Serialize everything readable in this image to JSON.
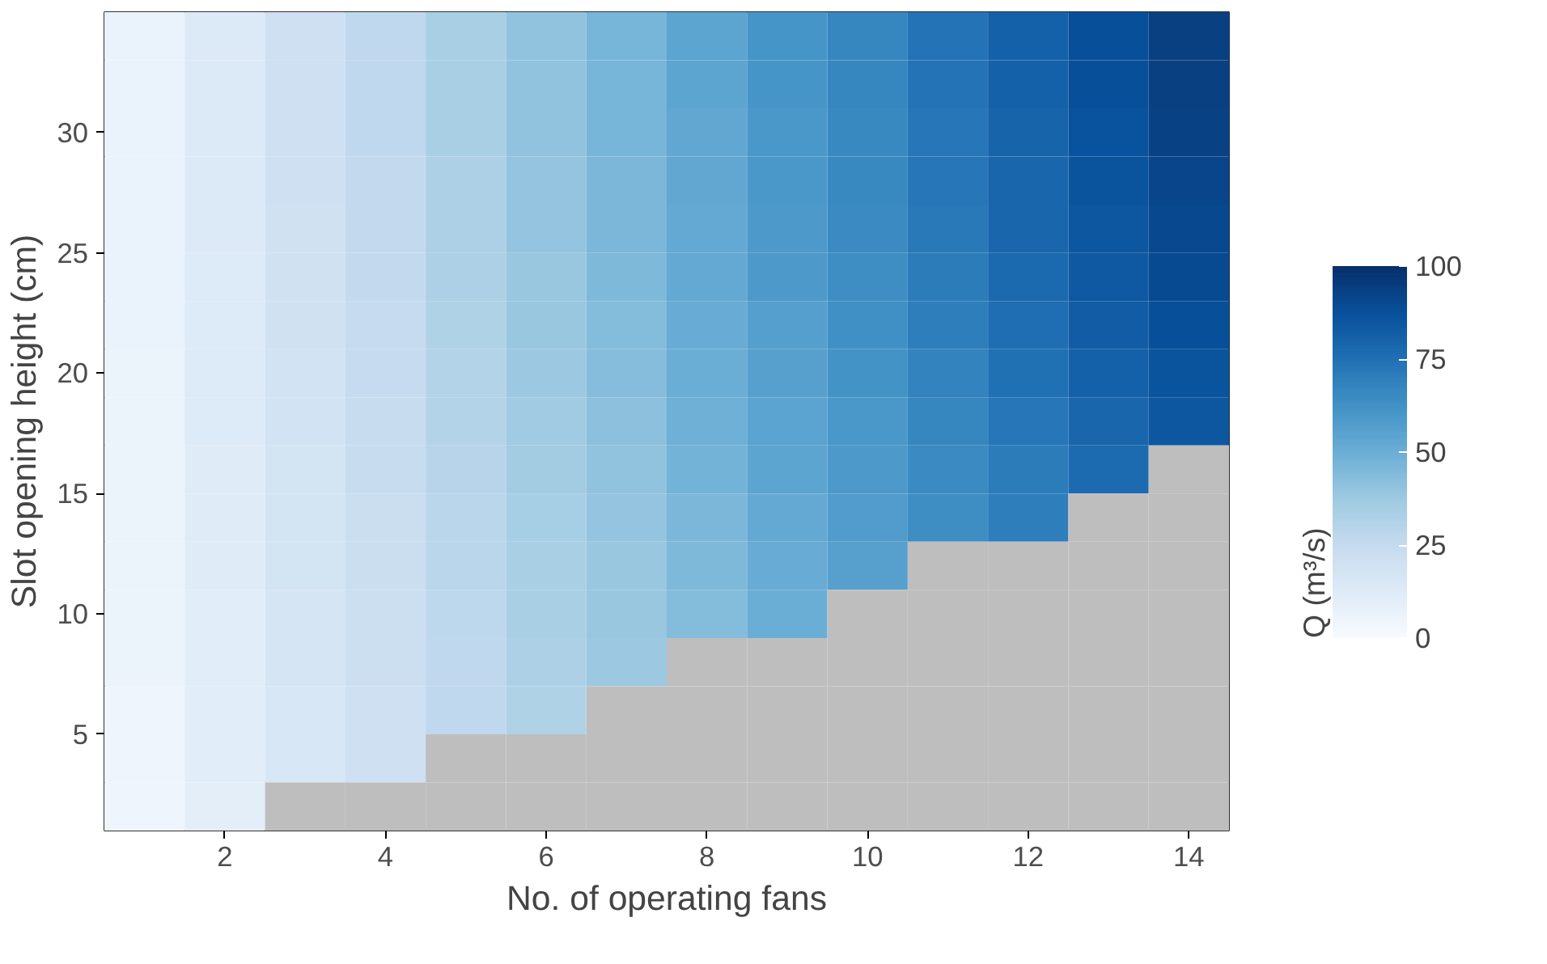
{
  "chart_data": {
    "type": "heatmap",
    "xlabel": "No. of operating fans",
    "ylabel": "Slot opening height (cm)",
    "clabel": "Q (m³/s)",
    "x": [
      1,
      2,
      3,
      4,
      5,
      6,
      7,
      8,
      9,
      10,
      11,
      12,
      13,
      14
    ],
    "y": [
      34,
      32,
      30,
      28,
      26,
      24,
      22,
      20,
      18,
      16,
      14,
      12,
      10,
      8,
      6,
      4,
      2
    ],
    "cells": [
      [
        7,
        14,
        21,
        27,
        34,
        41,
        47,
        54,
        61,
        67,
        74,
        81,
        88,
        94
      ],
      [
        7,
        14,
        21,
        27,
        34,
        41,
        47,
        54,
        61,
        67,
        74,
        81,
        88,
        94
      ],
      [
        7,
        14,
        21,
        27,
        34,
        41,
        47,
        53,
        60,
        66,
        73,
        80,
        87,
        93
      ],
      [
        7,
        14,
        21,
        26,
        33,
        40,
        46,
        53,
        60,
        66,
        73,
        79,
        86,
        92
      ],
      [
        7,
        14,
        20,
        26,
        33,
        40,
        46,
        52,
        59,
        65,
        72,
        79,
        85,
        91
      ],
      [
        7,
        13,
        20,
        26,
        33,
        39,
        45,
        52,
        59,
        64,
        71,
        78,
        84,
        90
      ],
      [
        7,
        13,
        20,
        25,
        32,
        39,
        44,
        51,
        57,
        63,
        70,
        76,
        83,
        88
      ],
      [
        6,
        13,
        19,
        25,
        31,
        38,
        43,
        50,
        56,
        62,
        68,
        75,
        81,
        86
      ],
      [
        6,
        13,
        19,
        24,
        31,
        37,
        42,
        49,
        55,
        60,
        67,
        73,
        79,
        85
      ],
      [
        6,
        12,
        18,
        24,
        30,
        36,
        41,
        48,
        54,
        59,
        65,
        71,
        77,
        null
      ],
      [
        6,
        12,
        18,
        23,
        29,
        35,
        40,
        46,
        52,
        58,
        64,
        70,
        null,
        null
      ],
      [
        6,
        12,
        18,
        23,
        29,
        34,
        39,
        45,
        51,
        56,
        null,
        null,
        null,
        null
      ],
      [
        6,
        11,
        17,
        22,
        28,
        34,
        39,
        44,
        50,
        null,
        null,
        null,
        null,
        null
      ],
      [
        6,
        11,
        17,
        22,
        27,
        33,
        38,
        null,
        null,
        null,
        null,
        null,
        null,
        null
      ],
      [
        5,
        11,
        16,
        21,
        27,
        32,
        null,
        null,
        null,
        null,
        null,
        null,
        null,
        null
      ],
      [
        5,
        11,
        16,
        21,
        null,
        null,
        null,
        null,
        null,
        null,
        null,
        null,
        null,
        null
      ],
      [
        5,
        10,
        null,
        null,
        null,
        null,
        null,
        null,
        null,
        null,
        null,
        null,
        null,
        null
      ]
    ],
    "xlim": [
      0.5,
      14.5
    ],
    "ylim": [
      1,
      35
    ],
    "xticks": [
      2,
      4,
      6,
      8,
      10,
      12,
      14
    ],
    "yticks": [
      5,
      10,
      15,
      20,
      25,
      30
    ],
    "clim": [
      0,
      100
    ],
    "cticks": [
      0,
      25,
      50,
      75,
      100
    ],
    "grid": false
  }
}
